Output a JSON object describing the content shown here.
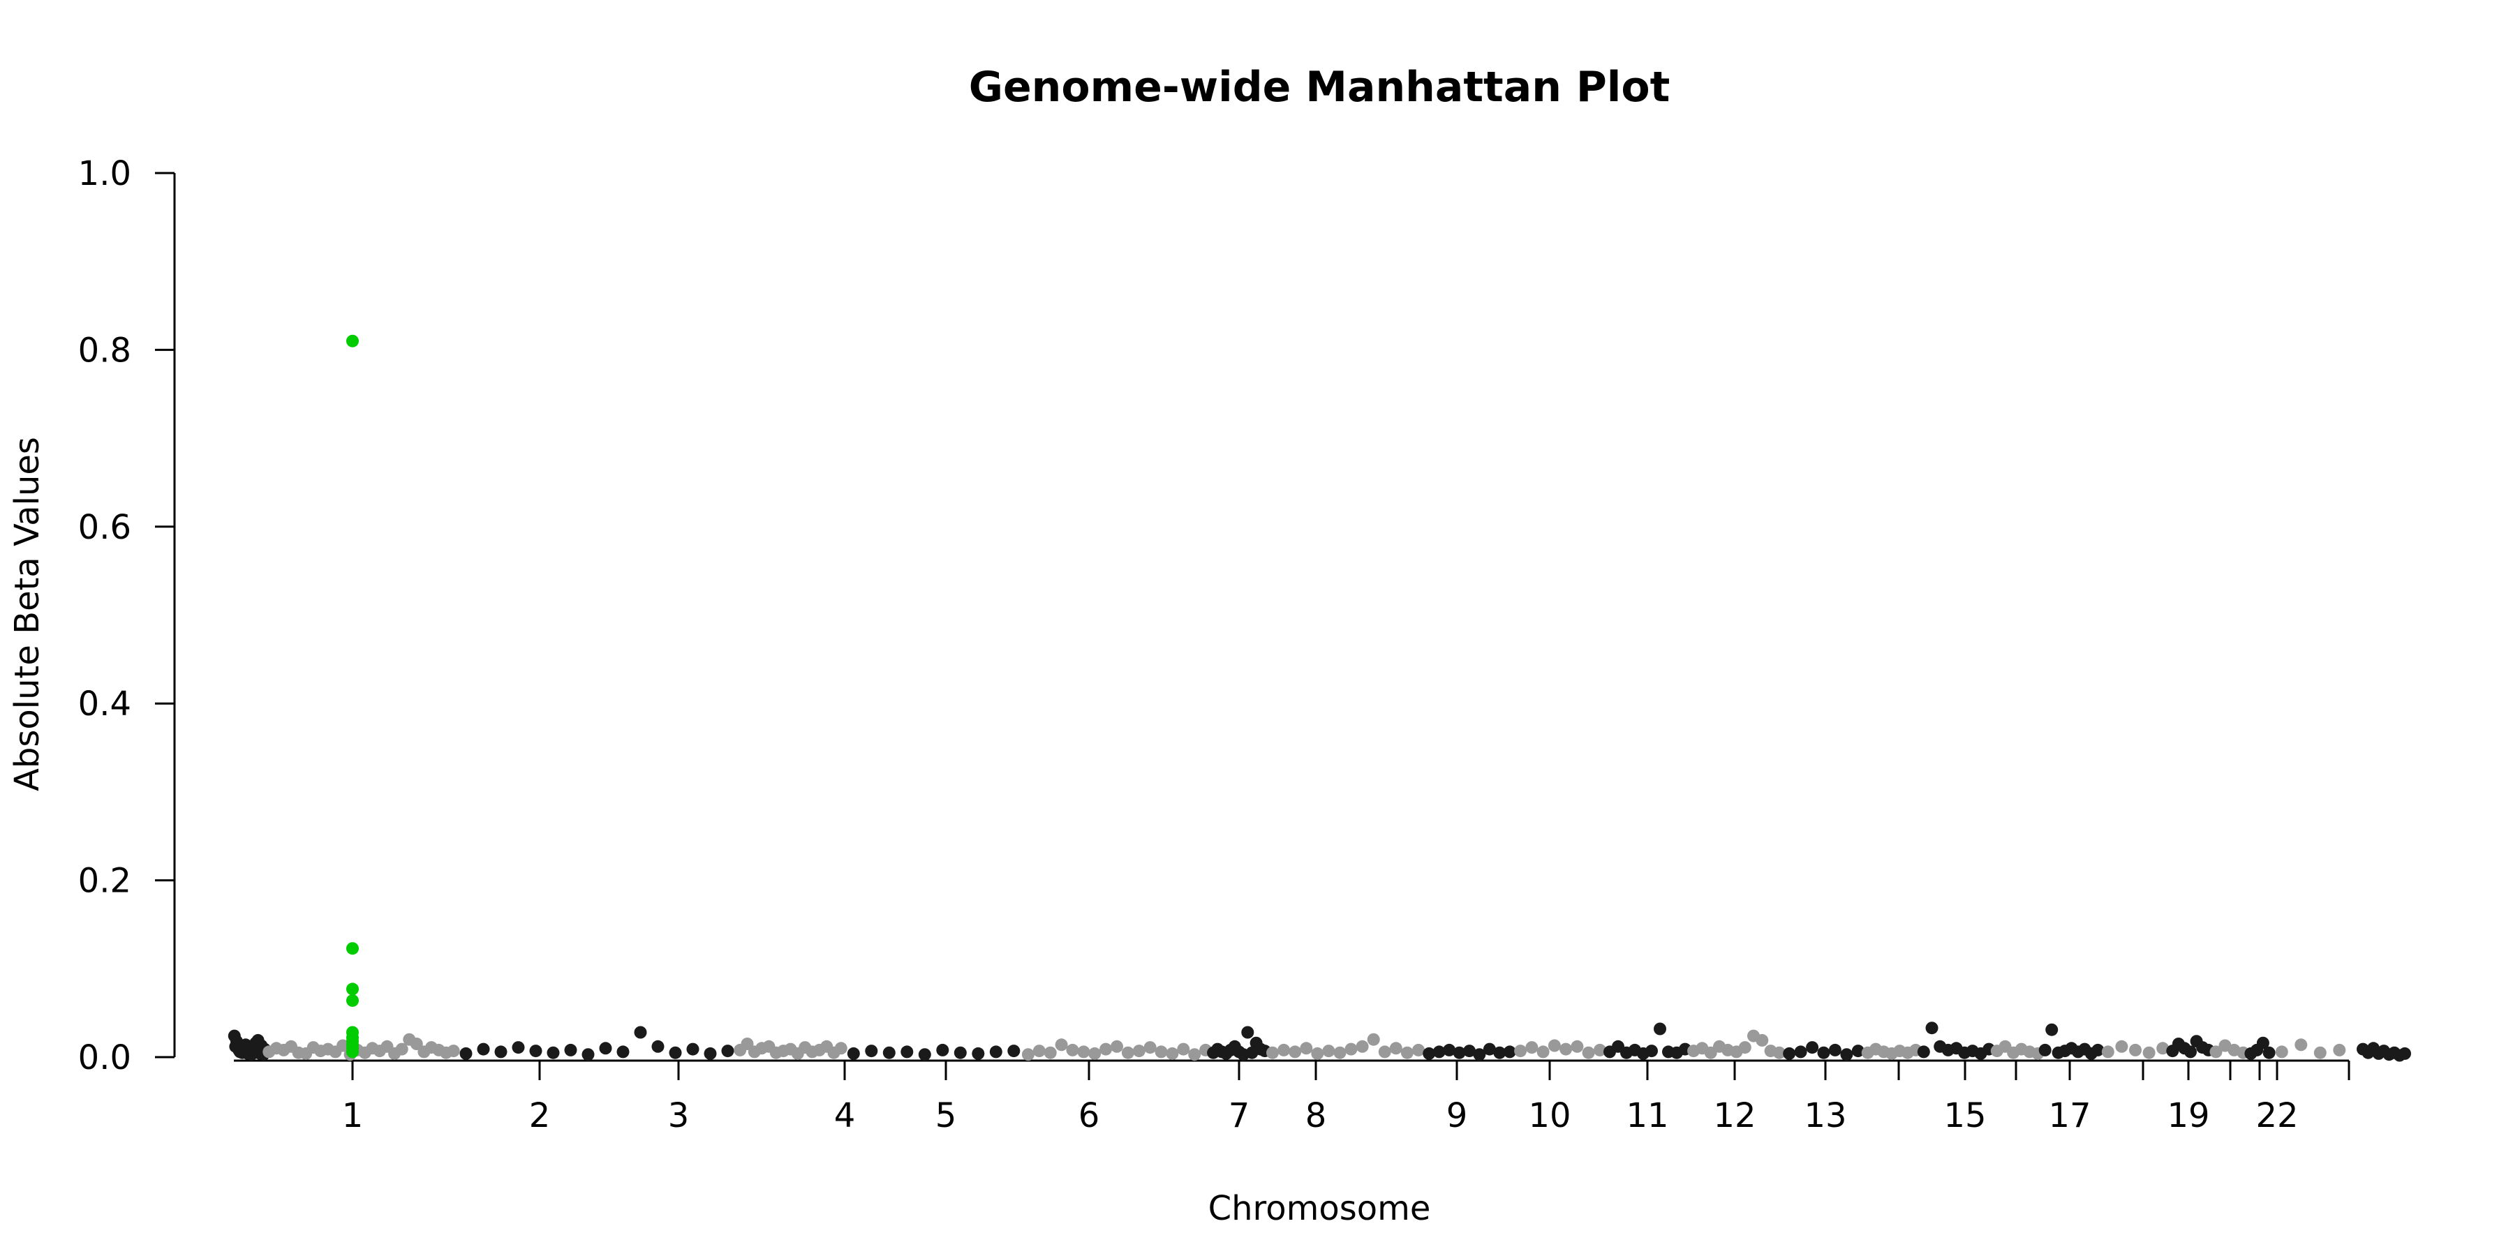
{
  "chart_data": {
    "type": "scatter",
    "title": "Genome-wide Manhattan Plot",
    "xlabel": "Chromosome",
    "ylabel": "Absolute Beta Values",
    "ylim": [
      0,
      1.0
    ],
    "y_ticks": [
      "0.0",
      "0.2",
      "0.4",
      "0.6",
      "0.8",
      "1.0"
    ],
    "grid": false,
    "legend": "none",
    "colors": {
      "dark": "#1a1a1a",
      "light": "#999999",
      "highlight": "#00cc00"
    },
    "chromosomes": [
      {
        "chr": "1",
        "label": "1"
      },
      {
        "chr": "2",
        "label": "2"
      },
      {
        "chr": "3",
        "label": "3"
      },
      {
        "chr": "4",
        "label": "4"
      },
      {
        "chr": "5",
        "label": "5"
      },
      {
        "chr": "6",
        "label": "6"
      },
      {
        "chr": "7",
        "label": "7"
      },
      {
        "chr": "8",
        "label": "8"
      },
      {
        "chr": "9",
        "label": "9"
      },
      {
        "chr": "10",
        "label": "10"
      },
      {
        "chr": "11",
        "label": "11"
      },
      {
        "chr": "12",
        "label": "12"
      },
      {
        "chr": "13",
        "label": "13"
      },
      {
        "chr": "14",
        "label": ""
      },
      {
        "chr": "15",
        "label": "15"
      },
      {
        "chr": "16",
        "label": ""
      },
      {
        "chr": "17",
        "label": "17"
      },
      {
        "chr": "18",
        "label": ""
      },
      {
        "chr": "19",
        "label": "19"
      },
      {
        "chr": "20",
        "label": ""
      },
      {
        "chr": "21",
        "label": ""
      },
      {
        "chr": "22",
        "label": "22"
      }
    ],
    "chromosome_values": {
      "1": [
        0.024,
        0.012,
        0.018,
        0.015,
        0.008,
        0.006,
        0.01,
        0.005,
        0.012,
        0.009,
        0.014,
        0.007,
        0.004,
        0.011,
        0.006,
        0.003,
        0.008,
        0.013,
        0.005,
        0.016,
        0.012,
        0.019,
        0.007,
        0.004,
        0.013,
        0.006,
        0.003,
        0.009
      ],
      "2": [
        0.006,
        0.01,
        0.008,
        0.012,
        0.005,
        0.004,
        0.011,
        0.007,
        0.009,
        0.006,
        0.013,
        0.003,
        0.008,
        0.005,
        0.01,
        0.007,
        0.012,
        0.004,
        0.009,
        0.02,
        0.015,
        0.006,
        0.011,
        0.008,
        0.005,
        0.007
      ],
      "3": [
        0.004,
        0.009,
        0.006,
        0.011,
        0.007,
        0.005,
        0.008,
        0.003,
        0.01,
        0.006,
        0.028,
        0.012,
        0.005,
        0.009,
        0.004,
        0.007
      ],
      "4": [
        0.008,
        0.015,
        0.006,
        0.01,
        0.012,
        0.005,
        0.007,
        0.009,
        0.004,
        0.011,
        0.006,
        0.008,
        0.012,
        0.005,
        0.01
      ],
      "5": [
        0.004,
        0.007,
        0.005,
        0.006,
        0.003,
        0.008,
        0.005,
        0.004,
        0.006,
        0.007
      ],
      "6": [
        0.003,
        0.007,
        0.005,
        0.014,
        0.008,
        0.006,
        0.004,
        0.009,
        0.012,
        0.005,
        0.007,
        0.011,
        0.006,
        0.004,
        0.009,
        0.003,
        0.008
      ],
      "7": [
        0.005,
        0.009,
        0.006,
        0.004,
        0.008,
        0.012,
        0.006,
        0.003,
        0.028,
        0.005,
        0.016,
        0.009,
        0.007
      ],
      "8": [
        0.005,
        0.008,
        0.006,
        0.01,
        0.004,
        0.007,
        0.005,
        0.009,
        0.012,
        0.02,
        0.006,
        0.01,
        0.005,
        0.008
      ],
      "9": [
        0.004,
        0.006,
        0.008,
        0.005,
        0.007,
        0.003,
        0.009,
        0.005,
        0.006
      ],
      "10": [
        0.007,
        0.011,
        0.006,
        0.013,
        0.009,
        0.012,
        0.005,
        0.008
      ],
      "11": [
        0.006,
        0.012,
        0.005,
        0.008,
        0.004,
        0.007,
        0.032,
        0.006,
        0.005,
        0.009
      ],
      "12": [
        0.007,
        0.01,
        0.005,
        0.012,
        0.008,
        0.006,
        0.011,
        0.024,
        0.019,
        0.007,
        0.005
      ],
      "13": [
        0.004,
        0.006,
        0.011,
        0.005,
        0.008,
        0.003,
        0.007
      ],
      "14": [
        0.005,
        0.009,
        0.006,
        0.004,
        0.007,
        0.005,
        0.008
      ],
      "15": [
        0.006,
        0.033,
        0.012,
        0.008,
        0.01,
        0.005,
        0.007,
        0.004,
        0.009
      ],
      "16": [
        0.007,
        0.012,
        0.005,
        0.009,
        0.006,
        0.004
      ],
      "17": [
        0.008,
        0.031,
        0.005,
        0.007,
        0.01,
        0.006,
        0.009,
        0.004,
        0.008
      ],
      "18": [
        0.006,
        0.012,
        0.008,
        0.005,
        0.01
      ],
      "19": [
        0.007,
        0.015,
        0.01,
        0.006,
        0.018,
        0.011,
        0.008
      ],
      "20": [
        0.006,
        0.013,
        0.008,
        0.005
      ],
      "21": [
        0.004,
        0.008,
        0.016,
        0.005
      ],
      "22": [
        0.006,
        0.014,
        0.005,
        0.008
      ]
    },
    "highlighted_points": {
      "chr": "1",
      "values": [
        0.81,
        0.123,
        0.077,
        0.064,
        0.028,
        0.022,
        0.018,
        0.014,
        0.01,
        0.006
      ]
    },
    "trailing_points": {
      "color": "dark",
      "values": [
        0.009,
        0.005,
        0.01,
        0.004,
        0.007,
        0.003,
        0.005,
        0.002,
        0.004
      ]
    }
  }
}
